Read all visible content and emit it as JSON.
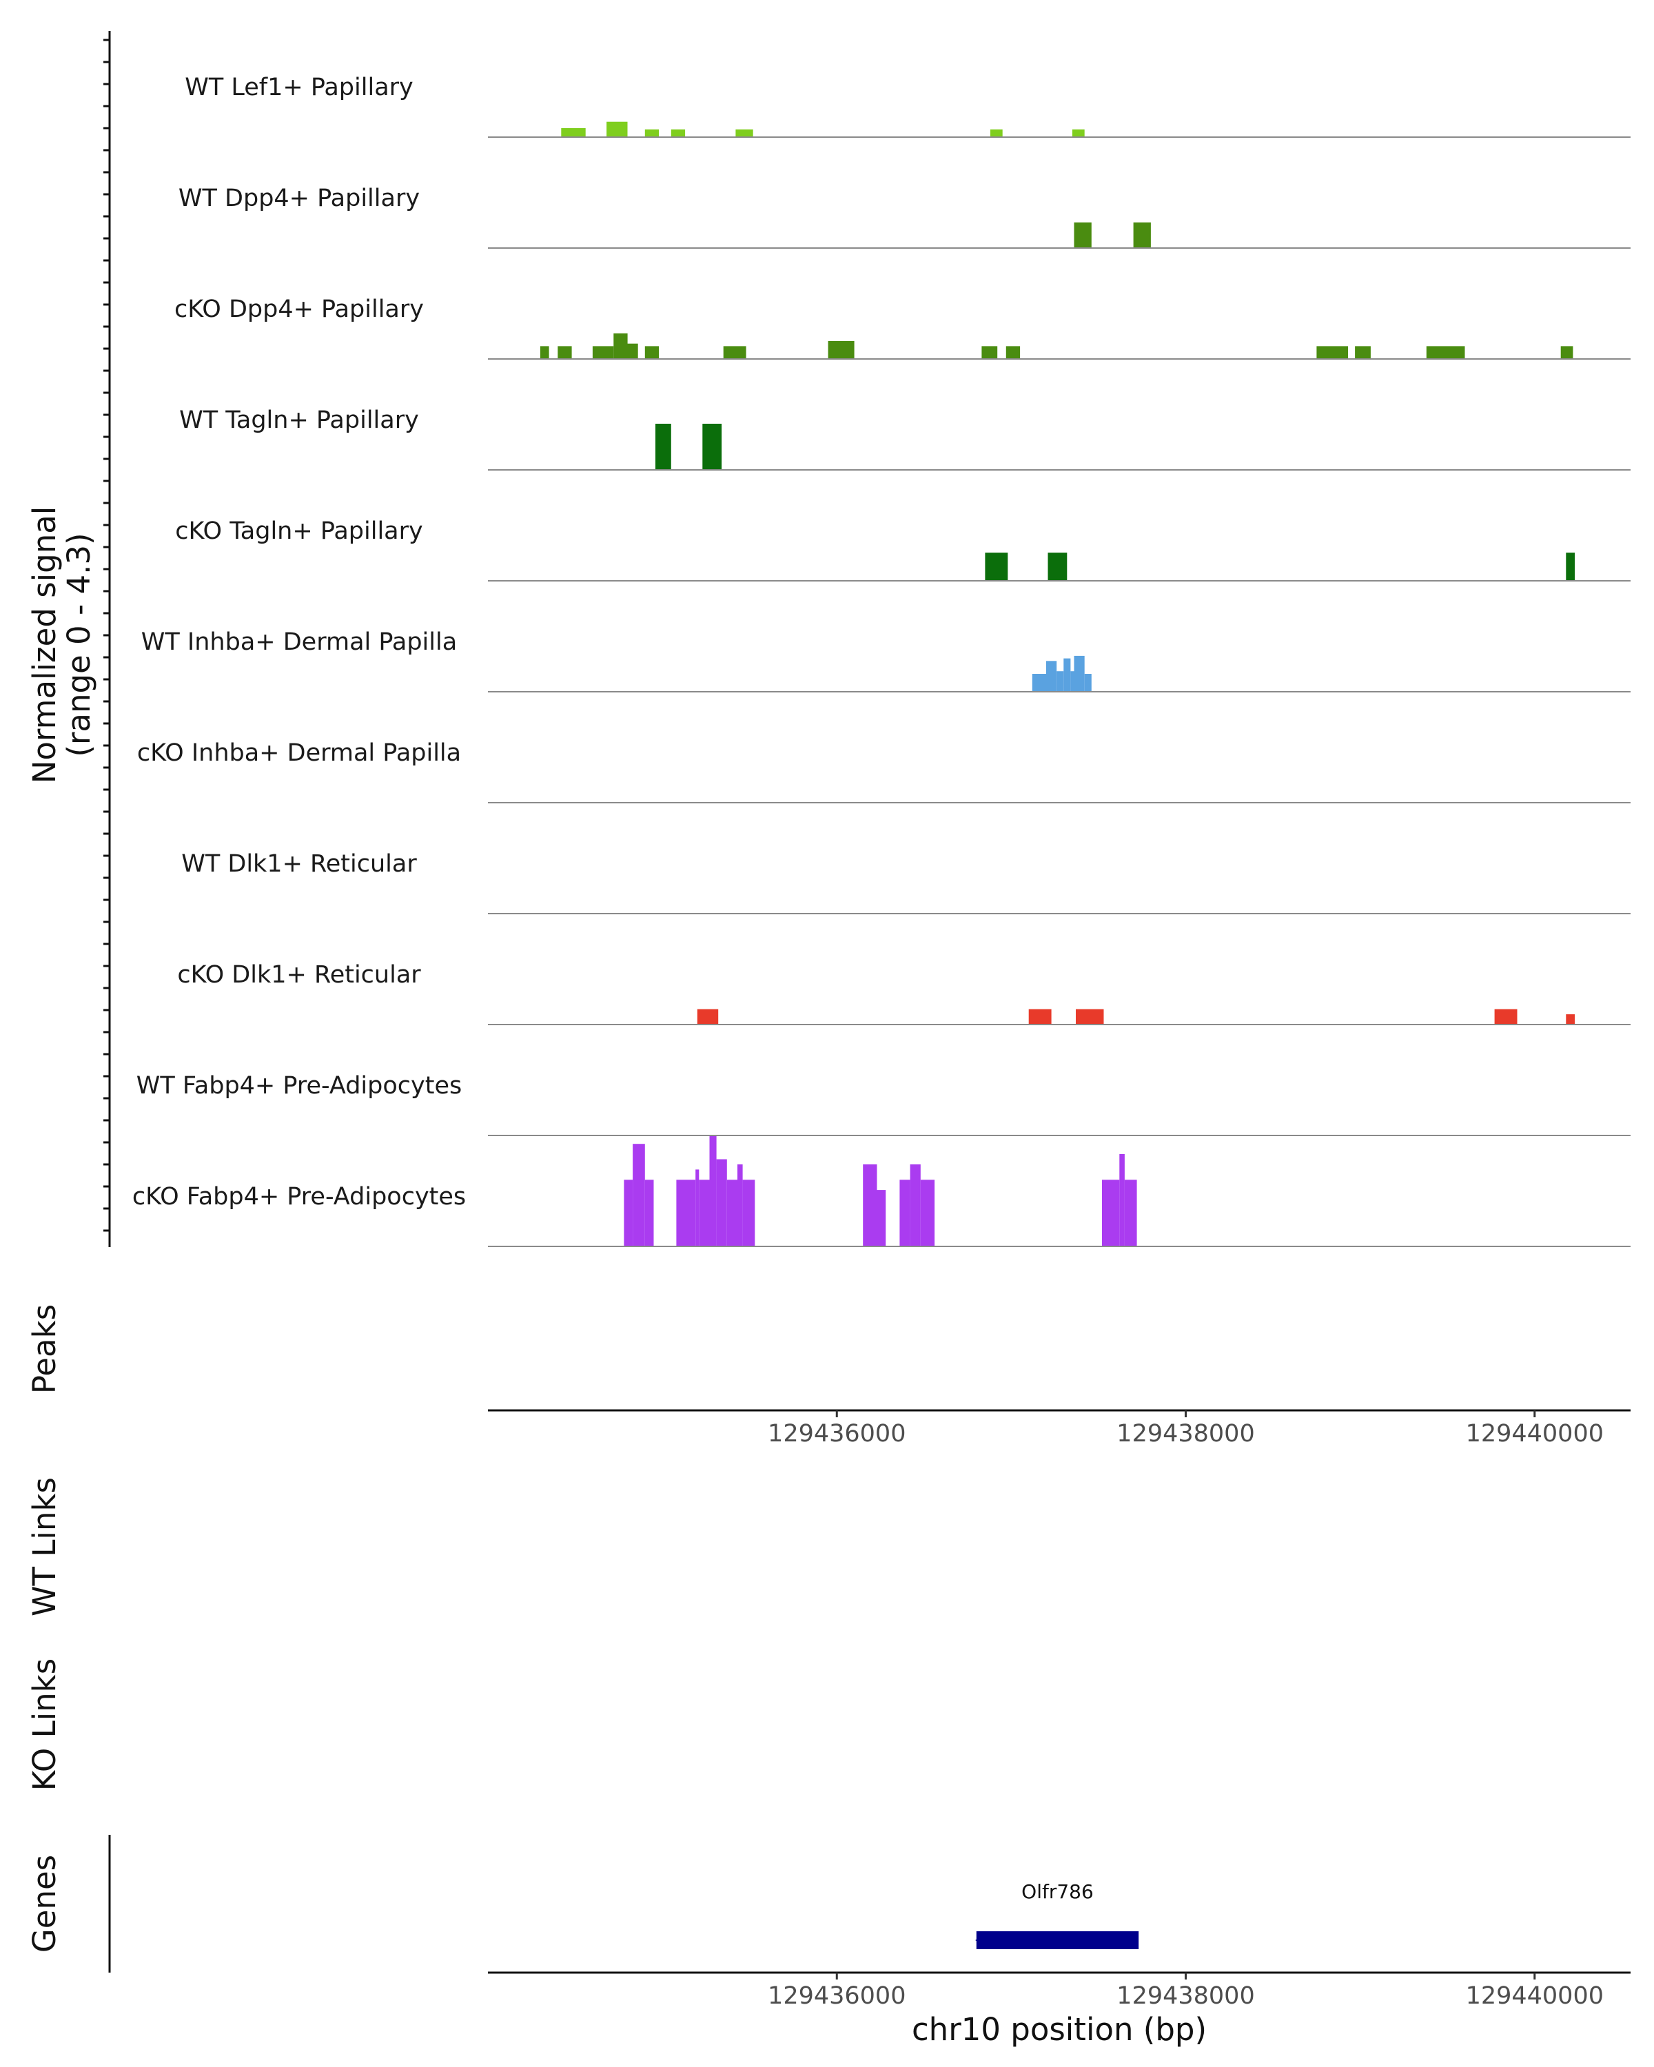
{
  "chart_data": {
    "type": "area",
    "title": "",
    "chromosome": "chr10",
    "xlabel": "chr10 position (bp)",
    "xlim": [
      129434000,
      129440550
    ],
    "x_ticks": [
      "129436000",
      "129438000",
      "129440000"
    ],
    "x_tick_values": [
      129436000,
      129438000,
      129440000
    ],
    "ylabel": "Normalized signal",
    "ylabel_range": "(range 0 - 4.3)",
    "ylim": [
      0,
      4.3
    ],
    "panels": {
      "peaks": "Peaks",
      "wt_links": "WT Links",
      "ko_links": "KO Links",
      "genes": "Genes"
    },
    "tracks": [
      {
        "name": "WT Lef1+ Papillary",
        "color": "#7fce1e",
        "bins": [
          [
            129434420,
            129434560,
            0.35
          ],
          [
            129434680,
            129434800,
            0.6
          ],
          [
            129434900,
            129434980,
            0.3
          ],
          [
            129435050,
            129435130,
            0.3
          ],
          [
            129435420,
            129435520,
            0.3
          ],
          [
            129436880,
            129436950,
            0.3
          ],
          [
            129437350,
            129437420,
            0.3
          ]
        ]
      },
      {
        "name": "WT Dpp4+ Papillary",
        "color": "#4a8c10",
        "bins": [
          [
            129437360,
            129437460,
            1.0
          ],
          [
            129437700,
            129437800,
            1.0
          ]
        ]
      },
      {
        "name": "cKO Dpp4+ Papillary",
        "color": "#4a8c10",
        "bins": [
          [
            129434300,
            129434350,
            0.5
          ],
          [
            129434400,
            129434480,
            0.5
          ],
          [
            129434600,
            129434720,
            0.5
          ],
          [
            129434720,
            129434800,
            1.0
          ],
          [
            129434800,
            129434860,
            0.6
          ],
          [
            129434900,
            129434980,
            0.5
          ],
          [
            129435350,
            129435480,
            0.5
          ],
          [
            129435950,
            129436100,
            0.7
          ],
          [
            129436830,
            129436920,
            0.5
          ],
          [
            129436970,
            129437050,
            0.5
          ],
          [
            129438750,
            129438930,
            0.5
          ],
          [
            129438970,
            129439060,
            0.5
          ],
          [
            129439380,
            129439600,
            0.5
          ],
          [
            129440150,
            129440220,
            0.5
          ]
        ]
      },
      {
        "name": "WT Tagln+ Papillary",
        "color": "#0b6e0b",
        "bins": [
          [
            129434960,
            129435050,
            1.8
          ],
          [
            129435230,
            129435340,
            1.8
          ]
        ]
      },
      {
        "name": "cKO Tagln+ Papillary",
        "color": "#0b6e0b",
        "bins": [
          [
            129436850,
            129436980,
            1.1
          ],
          [
            129437210,
            129437320,
            1.1
          ],
          [
            129440180,
            129440230,
            1.1
          ]
        ]
      },
      {
        "name": "WT Inhba+ Dermal Papilla",
        "color": "#5aa2e0",
        "bins": [
          [
            129437120,
            129437200,
            0.7
          ],
          [
            129437200,
            129437260,
            1.2
          ],
          [
            129437260,
            129437300,
            0.8
          ],
          [
            129437300,
            129437340,
            1.3
          ],
          [
            129437340,
            129437360,
            0.8
          ],
          [
            129437360,
            129437420,
            1.4
          ],
          [
            129437420,
            129437460,
            0.7
          ]
        ]
      },
      {
        "name": "cKO Inhba+ Dermal Papilla",
        "color": "#5aa2e0",
        "bins": []
      },
      {
        "name": "WT Dlk1+ Reticular",
        "color": "#e83a2a",
        "bins": []
      },
      {
        "name": "cKO Dlk1+ Reticular",
        "color": "#e83a2a",
        "bins": [
          [
            129435200,
            129435320,
            0.6
          ],
          [
            129437100,
            129437230,
            0.6
          ],
          [
            129437370,
            129437530,
            0.6
          ],
          [
            129439770,
            129439900,
            0.6
          ],
          [
            129440180,
            129440230,
            0.4
          ]
        ]
      },
      {
        "name": "WT Fabp4+ Pre-Adipocytes",
        "color": "#aa3cf0",
        "bins": []
      },
      {
        "name": "cKO Fabp4+ Pre-Adipocytes",
        "color": "#aa3cf0",
        "bins": [
          [
            129434780,
            129434830,
            2.6
          ],
          [
            129434830,
            129434900,
            4.0
          ],
          [
            129434900,
            129434950,
            2.6
          ],
          [
            129435080,
            129435190,
            2.6
          ],
          [
            129435190,
            129435210,
            3.0
          ],
          [
            129435210,
            129435270,
            2.6
          ],
          [
            129435270,
            129435310,
            4.3
          ],
          [
            129435310,
            129435370,
            3.4
          ],
          [
            129435370,
            129435430,
            2.6
          ],
          [
            129435430,
            129435460,
            3.2
          ],
          [
            129435460,
            129435530,
            2.6
          ],
          [
            129436150,
            129436230,
            3.2
          ],
          [
            129436230,
            129436280,
            2.2
          ],
          [
            129436360,
            129436420,
            2.6
          ],
          [
            129436420,
            129436480,
            3.2
          ],
          [
            129436480,
            129436560,
            2.6
          ],
          [
            129437520,
            129437620,
            2.6
          ],
          [
            129437620,
            129437650,
            3.6
          ],
          [
            129437650,
            129437720,
            2.6
          ]
        ]
      }
    ],
    "genes": [
      {
        "name": "Olfr786",
        "start": 129436800,
        "end": 129437730,
        "strand": "-",
        "color": "#00008b"
      }
    ]
  }
}
